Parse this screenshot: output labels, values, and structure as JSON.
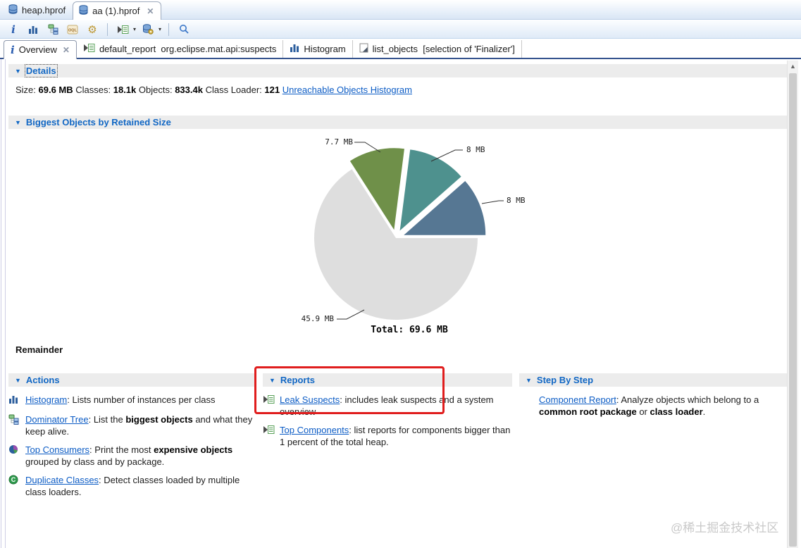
{
  "editor_tabs": [
    {
      "label": "heap.hprof",
      "active": false,
      "closable": false
    },
    {
      "label": "aa (1).hprof",
      "active": true,
      "closable": true
    }
  ],
  "toolbar": {
    "icons": [
      "info-icon",
      "histogram-icon",
      "dominator-tree-icon",
      "oql-icon",
      "customize-gear-icon",
      "run-report-icon",
      "heap-dump-gear-icon",
      "search-icon"
    ]
  },
  "view_tabs": [
    {
      "icon": "info-icon",
      "label": "Overview",
      "active": true,
      "closable": true
    },
    {
      "icon": "report-icon",
      "label": "default_report  org.eclipse.mat.api:suspects",
      "active": false,
      "closable": false
    },
    {
      "icon": "histogram-icon",
      "label": "Histogram",
      "active": false,
      "closable": false
    },
    {
      "icon": "page-icon",
      "label": "list_objects  [selection of 'Finalizer']",
      "active": false,
      "closable": false
    }
  ],
  "details": {
    "header": "Details",
    "segments": [
      {
        "t": "Size: "
      },
      {
        "t": "69.6 MB",
        "b": true
      },
      {
        "t": " Classes: "
      },
      {
        "t": "18.1k",
        "b": true
      },
      {
        "t": " Objects: "
      },
      {
        "t": "833.4k",
        "b": true
      },
      {
        "t": " Class Loader: "
      },
      {
        "t": "121",
        "b": true
      },
      {
        "t": " "
      },
      {
        "t": "Unreachable Objects Histogram",
        "link": true
      }
    ]
  },
  "biggest_objects": {
    "header": "Biggest Objects by Retained Size",
    "remainder_label": "Remainder"
  },
  "chart_data": {
    "type": "pie",
    "title": "Biggest Objects by Retained Size",
    "unit": "MB",
    "total_label": "Total: 69.6 MB",
    "total_value": 69.6,
    "slices": [
      {
        "label": "7.7 MB",
        "value": 7.7,
        "color": "#6f9049",
        "exploded": true
      },
      {
        "label": "8 MB",
        "value": 8,
        "color": "#4e918e",
        "exploded": true
      },
      {
        "label": "8 MB",
        "value": 8,
        "color": "#567793",
        "exploded": true
      },
      {
        "label": "45.9 MB",
        "value": 45.9,
        "color": "#dedede",
        "exploded": false,
        "name": "Remainder"
      }
    ],
    "legend_position": "none",
    "start_angle_deg": 122.6,
    "direction": "clockwise"
  },
  "sections": {
    "actions": {
      "header": "Actions",
      "items": [
        {
          "icon": "histogram-icon",
          "link": "Histogram",
          "segments": [
            {
              "t": ": Lists number of instances per class"
            }
          ]
        },
        {
          "icon": "dominator-tree-icon",
          "link": "Dominator Tree",
          "segments": [
            {
              "t": ": List the "
            },
            {
              "t": "biggest objects",
              "b": true
            },
            {
              "t": " and what they keep alive."
            }
          ]
        },
        {
          "icon": "pie-chart-icon",
          "link": "Top Consumers",
          "segments": [
            {
              "t": ": Print the most "
            },
            {
              "t": "expensive objects",
              "b": true
            },
            {
              "t": " grouped by class and by package."
            }
          ]
        },
        {
          "icon": "duplicate-classes-icon",
          "link": "Duplicate Classes",
          "segments": [
            {
              "t": ": Detect classes loaded by multiple class loaders."
            }
          ]
        }
      ]
    },
    "reports": {
      "header": "Reports",
      "items": [
        {
          "icon": "report-icon",
          "link": "Leak Suspects",
          "segments": [
            {
              "t": ": includes leak suspects and a system overview"
            }
          ]
        },
        {
          "icon": "report-icon",
          "link": "Top Components",
          "segments": [
            {
              "t": ": list reports for components bigger than 1 percent of the total heap."
            }
          ]
        }
      ]
    },
    "step_by_step": {
      "header": "Step By Step",
      "items": [
        {
          "icon": null,
          "link": "Component Report",
          "segments": [
            {
              "t": ": Analyze objects which belong to a "
            },
            {
              "t": "common root package",
              "b": true
            },
            {
              "t": " or "
            },
            {
              "t": "class loader",
              "b": true
            },
            {
              "t": "."
            }
          ]
        }
      ]
    }
  },
  "watermark": "@稀土掘金技术社区",
  "colors": {
    "section_title": "#1167c4",
    "link": "#0c5cc5",
    "annotation_box": "#e01d1d",
    "tab_underline": "#35538e",
    "pie_green": "#6f9049",
    "pie_teal": "#4e918e",
    "pie_blue": "#567793",
    "pie_gray": "#dedede"
  }
}
